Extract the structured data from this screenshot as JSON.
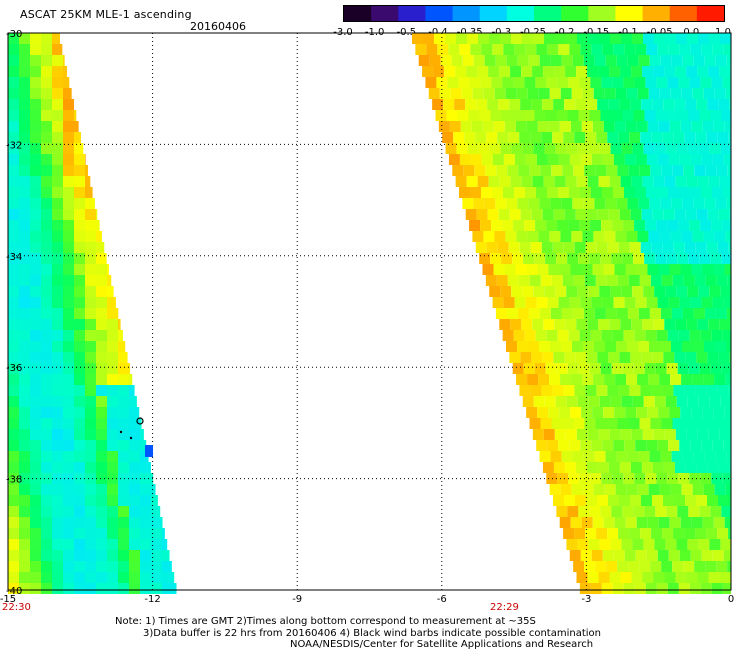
{
  "header": {
    "title": "ASCAT 25KM MLE-1 ascending",
    "date": "20160406"
  },
  "colorbar": {
    "ticks": [
      "-3.0",
      "-1.0",
      "-0.5",
      "-0.4",
      "-0.35",
      "-0.3",
      "-0.25",
      "-0.2",
      "-0.15",
      "-0.1",
      "-0.05",
      "0.0",
      "1.0"
    ],
    "colors": [
      "#1a0026",
      "#3a0a6e",
      "#2a1fcc",
      "#0055ff",
      "#0095ff",
      "#00d4ff",
      "#00ffe0",
      "#00ff80",
      "#30ff30",
      "#a0ff20",
      "#ffff00",
      "#ffb000",
      "#ff6000",
      "#ff1a00"
    ]
  },
  "footer": {
    "line1": "Note: 1) Times are GMT 2)Times along bottom correspond to measurement at ~35S",
    "line2": "3)Data buffer is 22 hrs from 20160406 4) Black wind barbs indicate possible contamination",
    "line3": "NOAA/NESDIS/Center for Satellite Applications and Research"
  },
  "time_labels": [
    "22:30",
    "22:29"
  ],
  "chart_data": {
    "type": "heatmap",
    "title": "ASCAT 25KM MLE-1 ascending",
    "x_ticks": [
      "-15",
      "-12",
      "-9",
      "-6",
      "-3",
      "0"
    ],
    "y_ticks": [
      "-30",
      "-32",
      "-34",
      "-36",
      "-38",
      "-40"
    ],
    "xlim": [
      -15,
      0
    ],
    "ylim": [
      -40,
      -30
    ],
    "grid": true,
    "swaths": [
      {
        "name": "",
        "time": "22:30"
      },
      {
        "name": "",
        "time": "22:29"
      }
    ]
  }
}
